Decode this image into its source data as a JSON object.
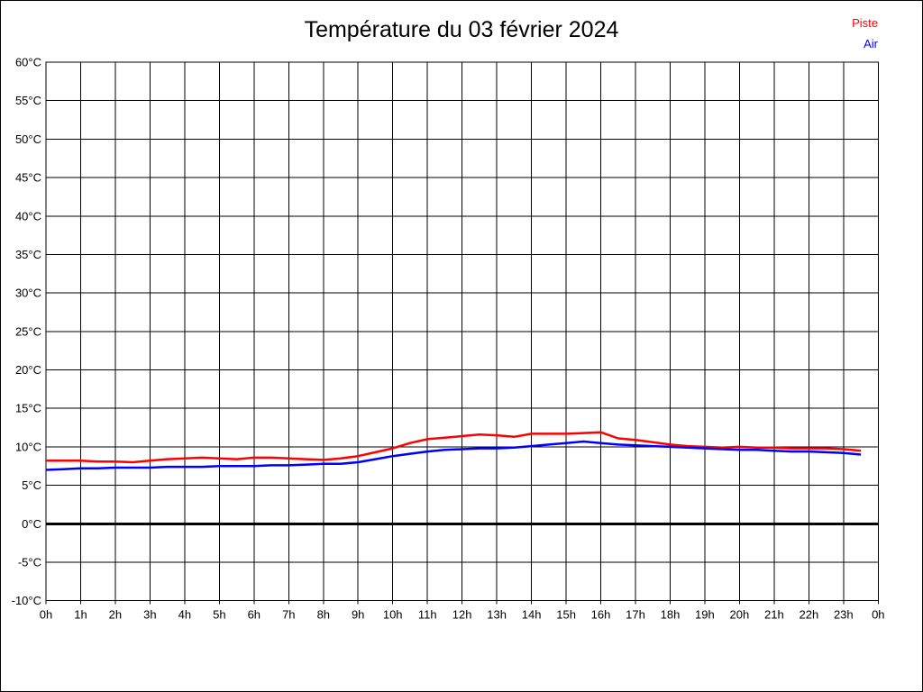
{
  "title": "Température du 03 février 2024",
  "legend": [
    {
      "label": "Piste",
      "color": "#ff0000"
    },
    {
      "label": "Air",
      "color": "#0000ff"
    }
  ],
  "chart_data": {
    "type": "line",
    "title": "Température du 03 février 2024",
    "xlabel": "",
    "ylabel": "",
    "xlim": [
      0,
      24
    ],
    "ylim": [
      -10,
      60
    ],
    "grid": true,
    "legend_position": "top-right",
    "zero_line_value": 0,
    "x_tick_hours": [
      0,
      1,
      2,
      3,
      4,
      5,
      6,
      7,
      8,
      9,
      10,
      11,
      12,
      13,
      14,
      15,
      16,
      17,
      18,
      19,
      20,
      21,
      22,
      23,
      24
    ],
    "x_tick_labels": [
      "0h",
      "1h",
      "2h",
      "3h",
      "4h",
      "5h",
      "6h",
      "7h",
      "8h",
      "9h",
      "10h",
      "11h",
      "12h",
      "13h",
      "14h",
      "15h",
      "16h",
      "17h",
      "18h",
      "19h",
      "20h",
      "21h",
      "22h",
      "23h",
      "0h"
    ],
    "y_tick_values": [
      60,
      55,
      50,
      45,
      40,
      35,
      30,
      25,
      20,
      15,
      10,
      5,
      0,
      -5,
      -10
    ],
    "y_tick_labels": [
      "60°C",
      "55°C",
      "50°C",
      "45°C",
      "40°C",
      "35°C",
      "30°C",
      "25°C",
      "20°C",
      "15°C",
      "10°C",
      "5°C",
      "0°C",
      "-5°C",
      "-10°C"
    ],
    "x": [
      0,
      0.5,
      1,
      1.5,
      2,
      2.5,
      3,
      3.5,
      4,
      4.5,
      5,
      5.5,
      6,
      6.5,
      7,
      7.5,
      8,
      8.5,
      9,
      9.5,
      10,
      10.5,
      11,
      11.5,
      12,
      12.5,
      13,
      13.5,
      14,
      14.5,
      15,
      15.5,
      16,
      16.5,
      17,
      17.5,
      18,
      18.5,
      19,
      19.5,
      20,
      20.5,
      21,
      21.5,
      22,
      22.5,
      23,
      23.5
    ],
    "series": [
      {
        "name": "Piste",
        "color": "#ff0000",
        "values": [
          8.2,
          8.2,
          8.2,
          8.1,
          8.1,
          8.0,
          8.2,
          8.4,
          8.5,
          8.6,
          8.5,
          8.4,
          8.6,
          8.6,
          8.5,
          8.4,
          8.3,
          8.5,
          8.8,
          9.3,
          9.8,
          10.5,
          11.0,
          11.2,
          11.4,
          11.6,
          11.5,
          11.3,
          11.7,
          11.7,
          11.7,
          11.8,
          11.9,
          11.1,
          10.9,
          10.6,
          10.3,
          10.1,
          10.0,
          9.9,
          10.0,
          9.9,
          9.9,
          9.8,
          9.8,
          9.8,
          9.7,
          9.5
        ]
      },
      {
        "name": "Air",
        "color": "#0000ff",
        "values": [
          7.0,
          7.1,
          7.2,
          7.2,
          7.3,
          7.3,
          7.3,
          7.4,
          7.4,
          7.4,
          7.5,
          7.5,
          7.5,
          7.6,
          7.6,
          7.7,
          7.8,
          7.8,
          8.0,
          8.4,
          8.8,
          9.1,
          9.4,
          9.6,
          9.7,
          9.8,
          9.8,
          9.9,
          10.1,
          10.3,
          10.5,
          10.7,
          10.5,
          10.3,
          10.2,
          10.1,
          10.0,
          9.9,
          9.8,
          9.7,
          9.6,
          9.6,
          9.5,
          9.4,
          9.4,
          9.3,
          9.2,
          9.0
        ]
      }
    ]
  }
}
